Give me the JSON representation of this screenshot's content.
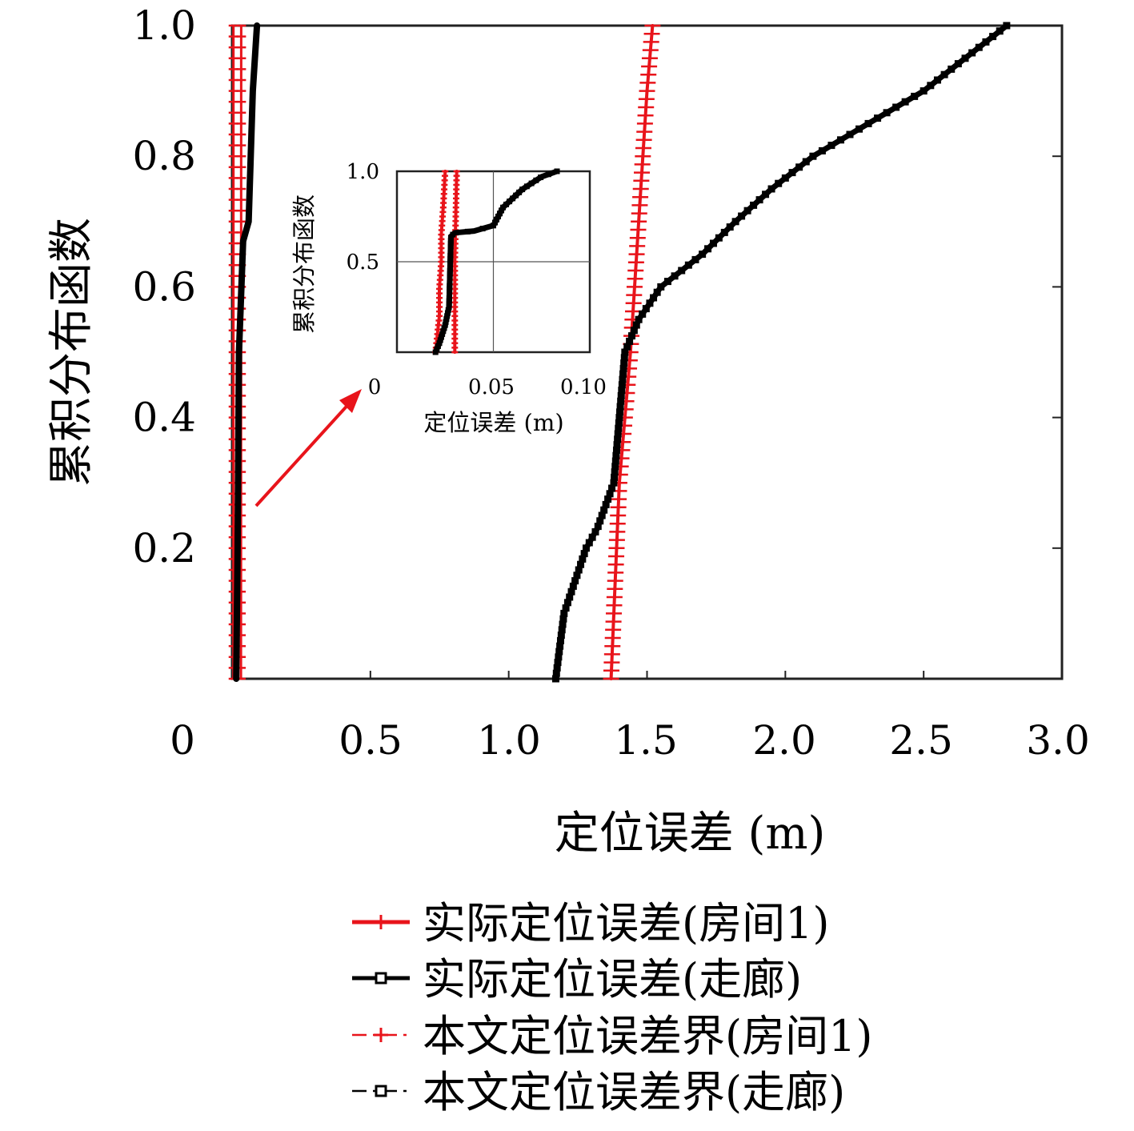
{
  "chart_data": {
    "type": "line",
    "title": "",
    "xlabel": "定位误差 (m)",
    "ylabel": "累积分布函数",
    "xlim": [
      0,
      3.0
    ],
    "ylim": [
      0,
      1.0
    ],
    "xticks": [
      "0",
      "0.5",
      "1.0",
      "1.5",
      "2.0",
      "2.5",
      "3.0"
    ],
    "yticks": [
      "0.2",
      "0.4",
      "0.6",
      "0.8",
      "1.0"
    ],
    "grid": false,
    "legend_position": "bottom",
    "series": [
      {
        "name": "实际定位误差(房间1)",
        "color": "#e8141b",
        "line": "solid",
        "marker": "plus",
        "points": [
          [
            0.02,
            0.0
          ],
          [
            0.021,
            0.1
          ],
          [
            0.022,
            0.2
          ],
          [
            0.022,
            0.35
          ],
          [
            0.023,
            0.5
          ],
          [
            0.023,
            0.65
          ],
          [
            0.024,
            0.8
          ],
          [
            0.025,
            1.0
          ]
        ]
      },
      {
        "name": "实际定位误差(走廊)",
        "color": "#000000",
        "line": "solid",
        "marker": "square",
        "points": [
          [
            0.02,
            0.0
          ],
          [
            0.022,
            0.05
          ],
          [
            0.025,
            0.15
          ],
          [
            0.027,
            0.25
          ],
          [
            0.028,
            0.64
          ],
          [
            0.03,
            0.66
          ],
          [
            0.04,
            0.67
          ],
          [
            0.05,
            0.7
          ],
          [
            0.055,
            0.8
          ],
          [
            0.065,
            0.9
          ],
          [
            0.075,
            0.97
          ],
          [
            0.083,
            1.0
          ]
        ]
      },
      {
        "name": "本文定位误差界(房间1)",
        "color": "#e8141b",
        "line": "dashdot",
        "marker": "plus",
        "points": [
          [
            0.03,
            0.0
          ],
          [
            0.03,
            0.5
          ],
          [
            0.031,
            1.0
          ]
        ]
      },
      {
        "name": "本文定位误差界(走廊)",
        "color": "#000000",
        "line": "dashdot",
        "marker": "square",
        "points": [
          [
            1.17,
            0.0
          ],
          [
            1.2,
            0.1
          ],
          [
            1.28,
            0.2
          ],
          [
            1.32,
            0.23
          ],
          [
            1.38,
            0.3
          ],
          [
            1.42,
            0.5
          ],
          [
            1.47,
            0.55
          ],
          [
            1.55,
            0.6
          ],
          [
            1.7,
            0.65
          ],
          [
            1.82,
            0.7
          ],
          [
            1.95,
            0.75
          ],
          [
            2.1,
            0.8
          ],
          [
            2.3,
            0.85
          ],
          [
            2.5,
            0.9
          ],
          [
            2.65,
            0.95
          ],
          [
            2.8,
            1.0
          ]
        ]
      },
      {
        "name": "_bound_room1",
        "color": "#e8141b",
        "marker": "plus",
        "points": [
          [
            1.37,
            0.0
          ],
          [
            1.4,
            0.3
          ],
          [
            1.44,
            0.5
          ],
          [
            1.47,
            0.7
          ],
          [
            1.5,
            0.9
          ],
          [
            1.52,
            1.0
          ]
        ]
      }
    ],
    "inset": {
      "xlabel": "定位误差 (m)",
      "ylabel": "累积分布函数",
      "xlim": [
        0,
        0.1
      ],
      "ylim": [
        0,
        1.0
      ],
      "xticks": [
        "0",
        "0.05",
        "0.10"
      ],
      "yticks": [
        "0.5",
        "1.0"
      ],
      "grid": true
    }
  }
}
